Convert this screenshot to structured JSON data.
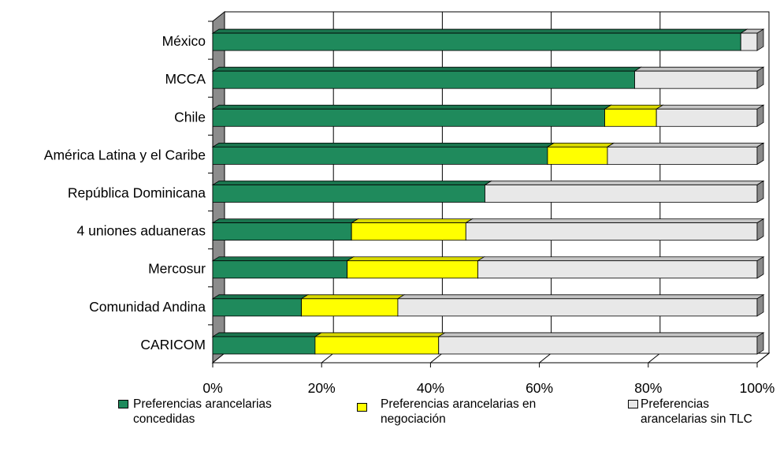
{
  "chart_data": {
    "type": "bar",
    "orientation": "horizontal",
    "stacked": "percent",
    "categories": [
      "México",
      "MCCA",
      "Chile",
      "América Latina y el Caribe",
      "República Dominicana",
      "4 uniones aduaneras",
      "Mercosur",
      "Comunidad Andina",
      "CARICOM"
    ],
    "series": [
      {
        "name": "Preferencias arancelarias concedidas",
        "color": "#1f8a5c",
        "values": [
          97,
          77.5,
          72,
          61.5,
          50,
          25.5,
          24.7,
          16.3,
          18.8
        ]
      },
      {
        "name": "Preferencias arancelarias en negociación",
        "color": "#ffff00",
        "values": [
          0,
          0,
          9.5,
          11,
          0,
          21,
          24,
          17.7,
          22.7
        ]
      },
      {
        "name": "Preferencias arancelarias sin TLC",
        "color": "#e8e8e8",
        "values": [
          3,
          22.5,
          18.5,
          27.5,
          50,
          53.5,
          51.3,
          66,
          58.5
        ]
      }
    ],
    "x_ticks": [
      "0%",
      "20%",
      "40%",
      "60%",
      "80%",
      "100%"
    ],
    "xlim": [
      0,
      100
    ],
    "grid": true,
    "legend_position": "bottom",
    "legend_labels": {
      "s0_line1": "Preferencias arancelarias",
      "s0_line2": "concedidas",
      "s1_line1": "Preferencias arancelarias en",
      "s1_line2": "negociación",
      "s2_line1": "Preferencias",
      "s2_line2": "arancelarias sin TLC"
    }
  }
}
